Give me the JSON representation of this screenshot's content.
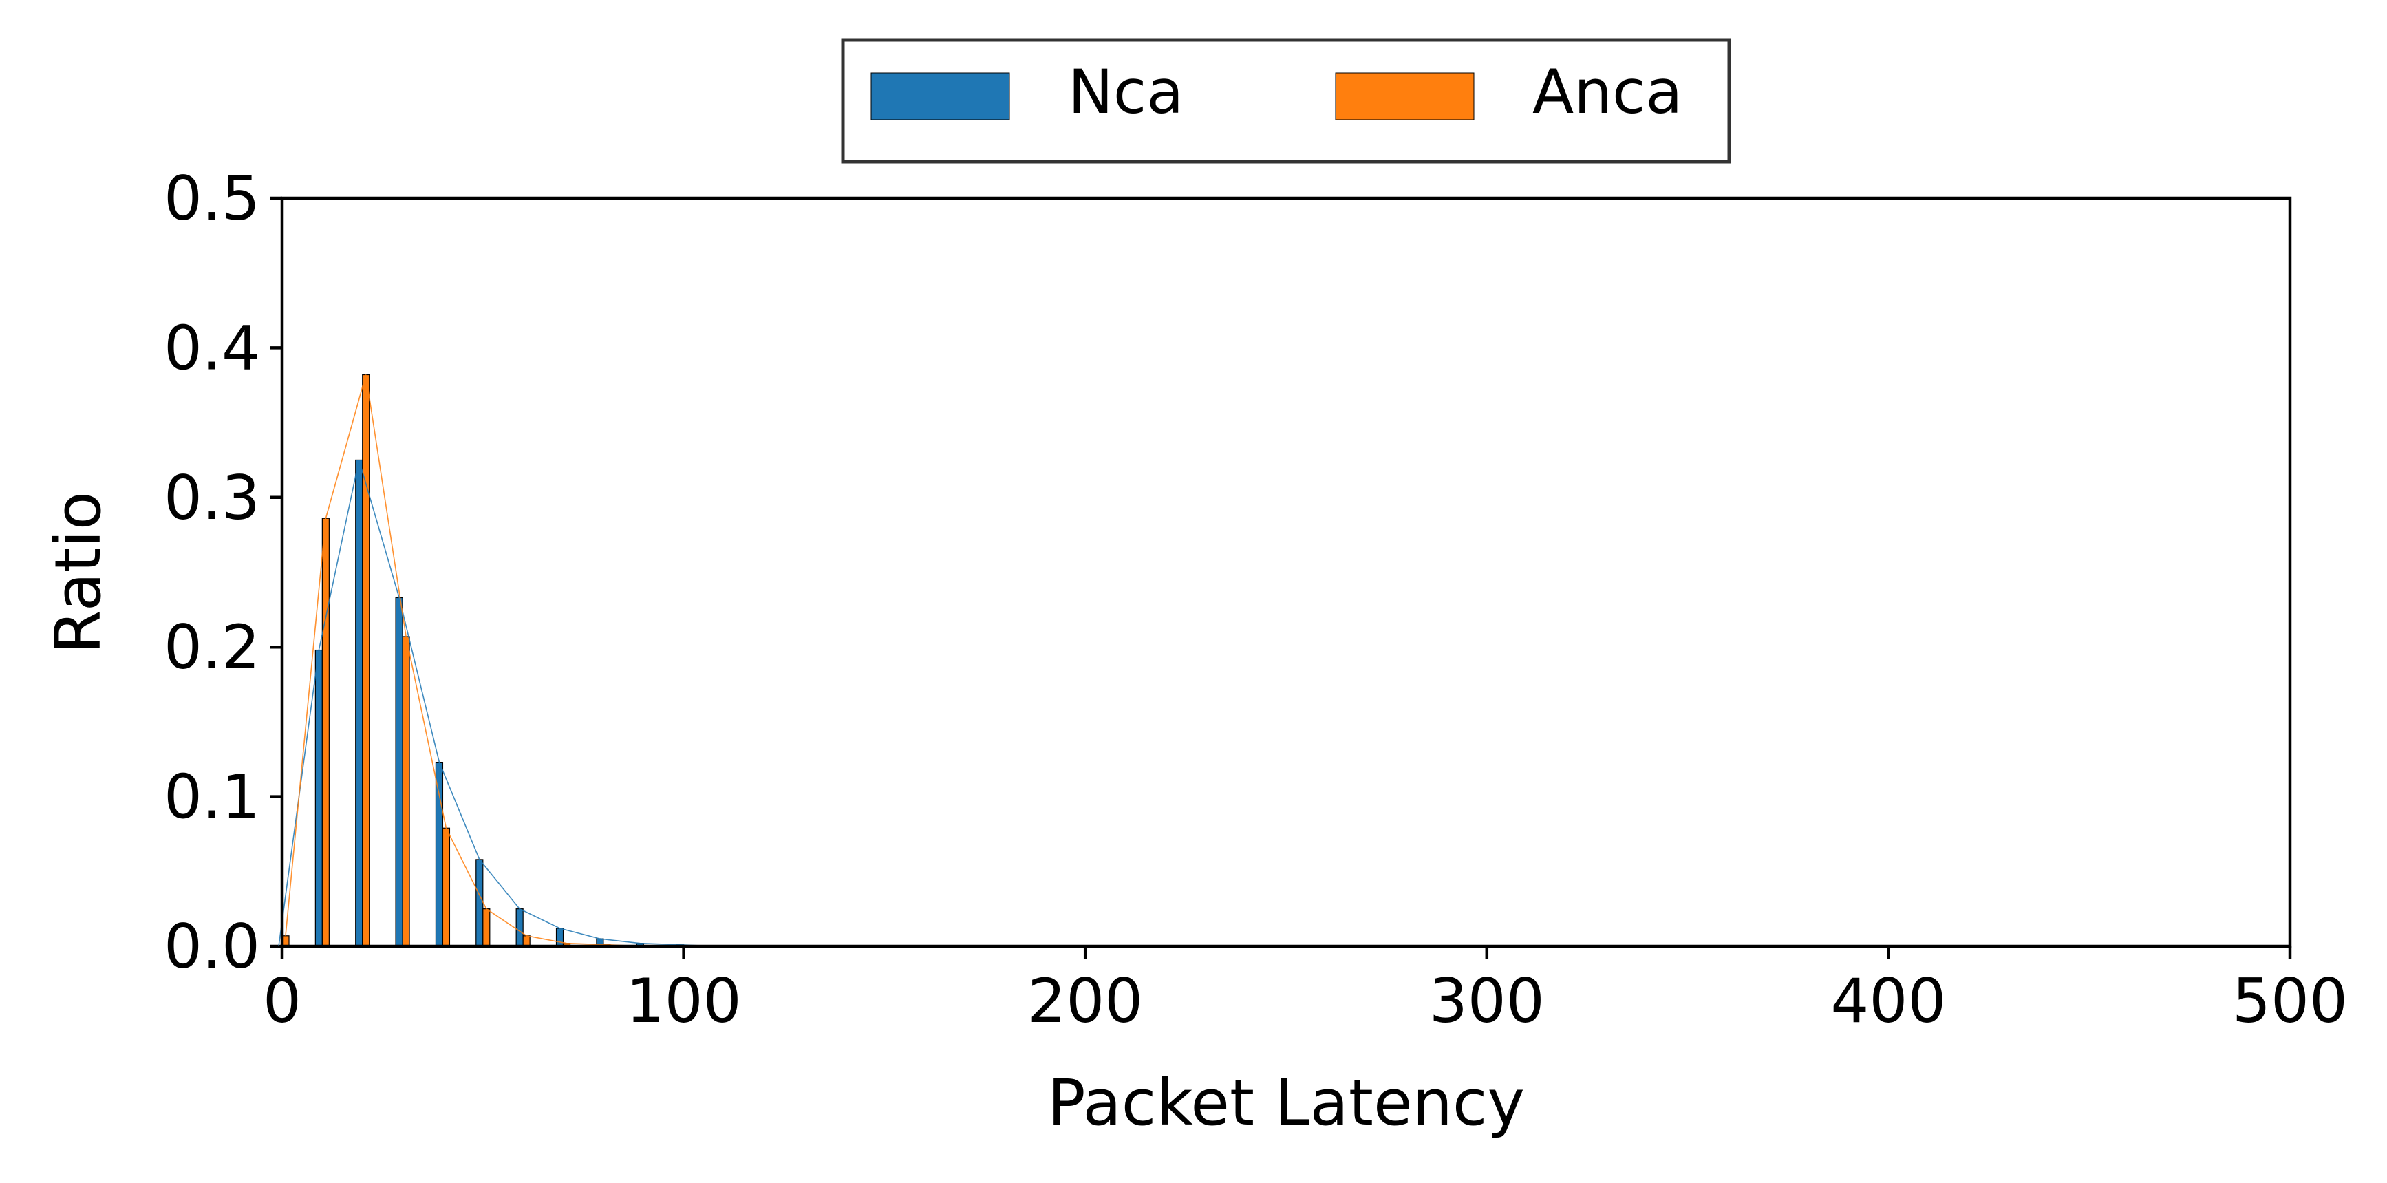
{
  "chart_data": {
    "type": "bar",
    "title": "",
    "xlabel": "Packet Latency",
    "ylabel": "Ratio",
    "xlim": [
      0,
      500
    ],
    "ylim": [
      0,
      0.5
    ],
    "xticks": [
      0,
      100,
      200,
      300,
      400,
      500
    ],
    "yticks": [
      0.0,
      0.1,
      0.2,
      0.3,
      0.4,
      0.5
    ],
    "xtick_labels": [
      "0",
      "100",
      "200",
      "300",
      "400",
      "500"
    ],
    "ytick_labels": [
      "0.0",
      "0.1",
      "0.2",
      "0.3",
      "0.4",
      "0.5"
    ],
    "grid": false,
    "legend": {
      "placement": "top-center",
      "columns": 2
    },
    "series": [
      {
        "name": "Nca",
        "color": "#1f77b4",
        "x": [
          0,
          10,
          20,
          30,
          40,
          50,
          60,
          70,
          80,
          90,
          100,
          110
        ],
        "values": [
          0.0,
          0.198,
          0.325,
          0.233,
          0.123,
          0.058,
          0.025,
          0.012,
          0.005,
          0.002,
          0.001,
          0.0
        ]
      },
      {
        "name": "Anca",
        "color": "#ff7f0e",
        "x": [
          0,
          10,
          20,
          30,
          40,
          50,
          60,
          70,
          80,
          90,
          100,
          110
        ],
        "values": [
          0.007,
          0.286,
          0.382,
          0.207,
          0.079,
          0.025,
          0.007,
          0.002,
          0.001,
          0.0,
          0.0,
          0.0
        ]
      }
    ]
  }
}
